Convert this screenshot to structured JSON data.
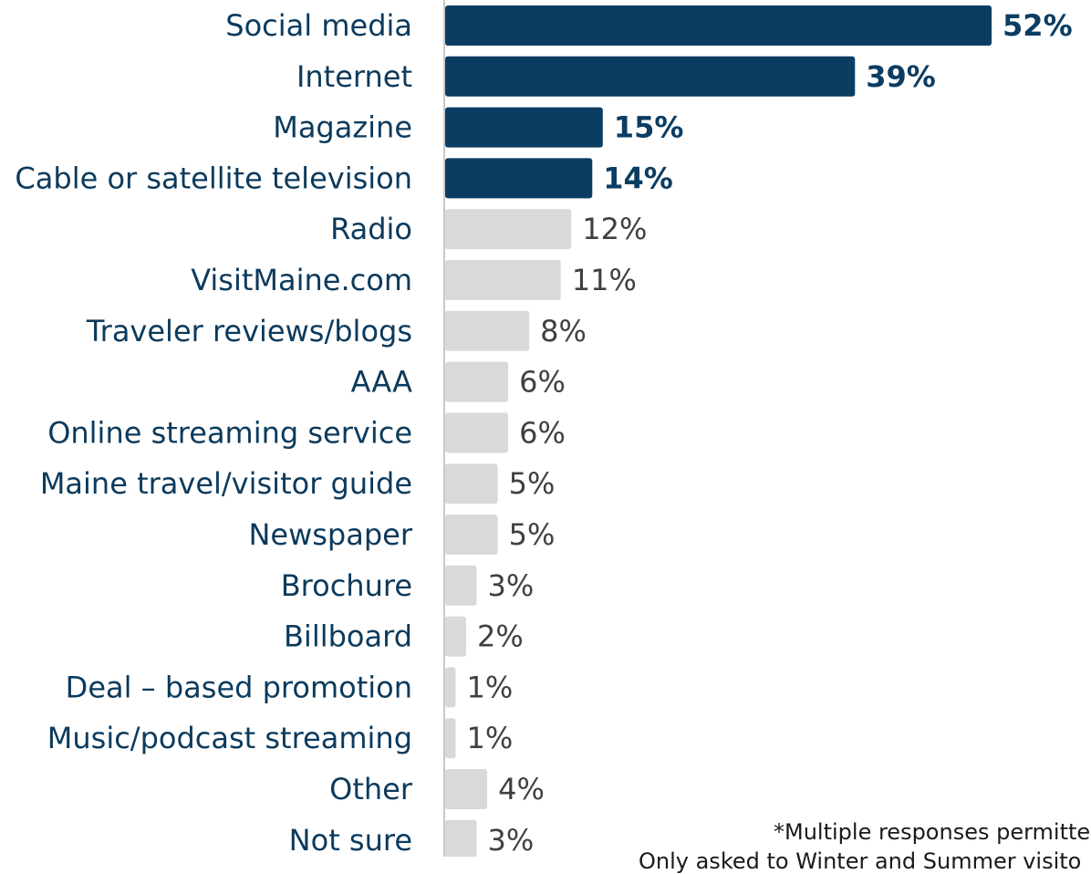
{
  "chart_data": {
    "type": "bar",
    "orientation": "horizontal",
    "categories": [
      "Social media",
      "Internet",
      "Magazine",
      "Cable or satellite television",
      "Radio",
      "VisitMaine.com",
      "Traveler reviews/blogs",
      "AAA",
      "Online streaming service",
      "Maine travel/visitor guide",
      "Newspaper",
      "Brochure",
      "Billboard",
      "Deal – based promotion",
      "Music/podcast streaming",
      "Other",
      "Not sure"
    ],
    "values": [
      52,
      39,
      15,
      14,
      12,
      11,
      8,
      6,
      6,
      5,
      5,
      3,
      2,
      1,
      1,
      4,
      3
    ],
    "value_labels": [
      "52%",
      "39%",
      "15%",
      "14%",
      "12%",
      "11%",
      "8%",
      "6%",
      "6%",
      "5%",
      "5%",
      "3%",
      "2%",
      "1%",
      "1%",
      "4%",
      "3%"
    ],
    "highlighted": [
      true,
      true,
      true,
      true,
      false,
      false,
      false,
      false,
      false,
      false,
      false,
      false,
      false,
      false,
      false,
      false,
      false
    ],
    "unit": "%",
    "xlim": [
      0,
      52
    ],
    "grid": false,
    "legend": "none",
    "colors": {
      "highlight_bar": "#0b3d63",
      "other_bar": "#d9d9d9",
      "category_text": "#0b3a5c",
      "highlight_value_text": "#0b3d63",
      "other_value_text": "#404040",
      "axis_line": "#c8c8c8"
    }
  },
  "footnote": {
    "line1": "*Multiple responses permitte",
    "line2": "Only asked to Winter and Summer visito"
  }
}
